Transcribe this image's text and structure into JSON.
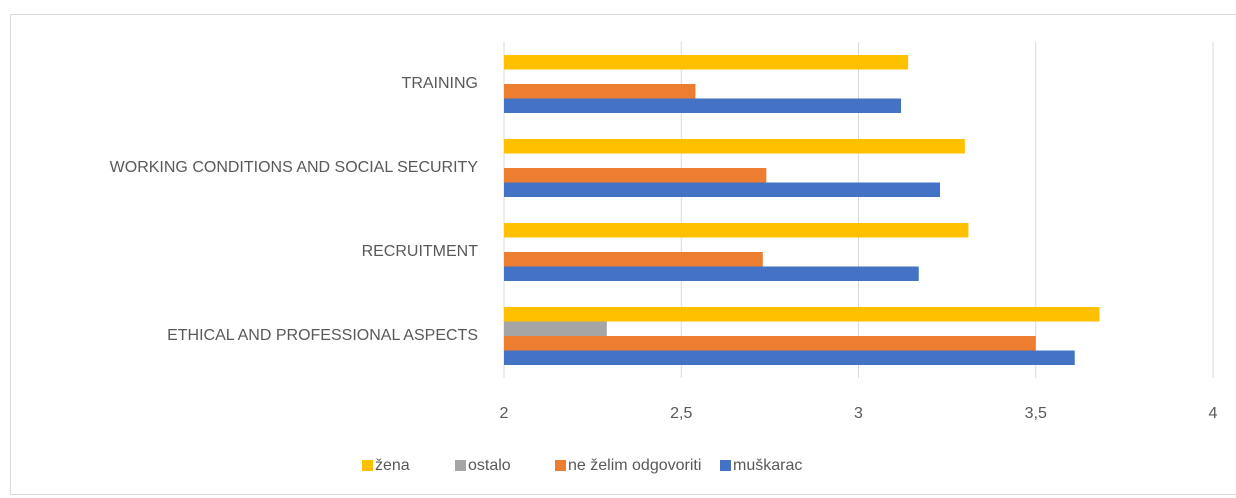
{
  "chart_data": {
    "type": "hbar",
    "categories": [
      "TRAINING",
      "WORKING CONDITIONS AND SOCIAL SECURITY",
      "RECRUITMENT",
      "ETHICAL AND PROFESSIONAL ASPECTS"
    ],
    "series": [
      {
        "name": "žena",
        "color": "#ffc000",
        "values": [
          3.14,
          3.3,
          3.31,
          3.68
        ]
      },
      {
        "name": "ostalo",
        "color": "#a5a5a5",
        "values": [
          null,
          null,
          null,
          2.29
        ]
      },
      {
        "name": "ne želim odgovoriti",
        "color": "#ed7d31",
        "values": [
          2.54,
          2.74,
          2.73,
          3.5
        ]
      },
      {
        "name": "muškarac",
        "color": "#4472c4",
        "values": [
          3.12,
          3.23,
          3.17,
          3.61
        ]
      }
    ],
    "xlim": [
      2,
      4
    ],
    "xticks": [
      2,
      {
        "value": 2.5,
        "label": "2,5"
      },
      3,
      {
        "value": 3.5,
        "label": "3,5"
      },
      4
    ],
    "grid": true,
    "legend": "bottom"
  }
}
